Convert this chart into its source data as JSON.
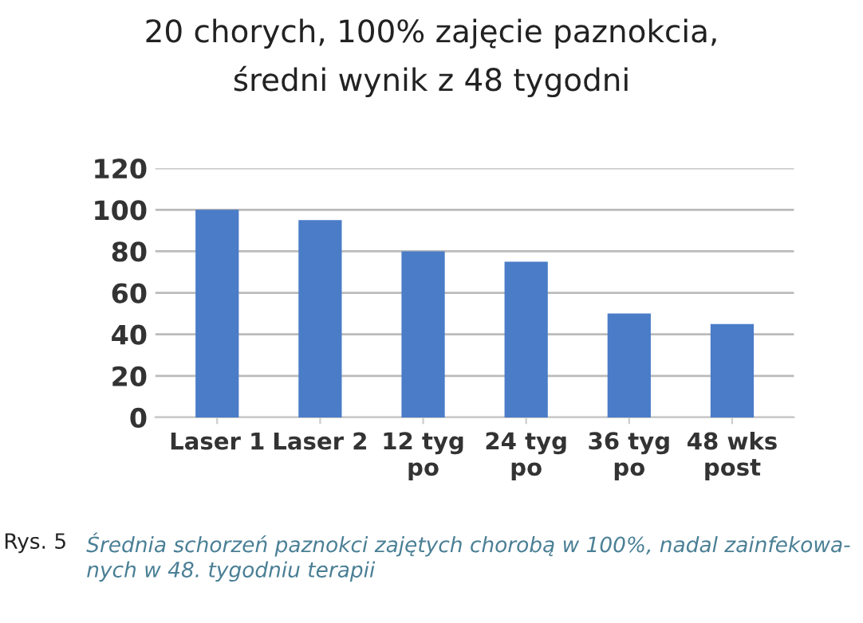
{
  "chart_data": {
    "type": "bar",
    "title": "20 chorych, 100% zajęcie paznokcia,\nśredni wynik z 48 tygodni",
    "categories": [
      "Laser 1",
      "Laser 2",
      "12 tyg\npo",
      "24 tyg\npo",
      "36 tyg\npo",
      "48 wks\npost"
    ],
    "values": [
      100,
      95,
      80,
      75,
      50,
      45
    ],
    "color": "#4a7cc7",
    "ylim": [
      0,
      120
    ],
    "yticks": [
      0,
      20,
      40,
      60,
      80,
      100,
      120
    ],
    "grid": "y",
    "annotations": [
      "Rys. 5",
      "Średnia schorzeń paznokci zajętych chorobą w 100%, nadal zainfekowa-\nnych w 48. tygodniu terapii"
    ]
  }
}
